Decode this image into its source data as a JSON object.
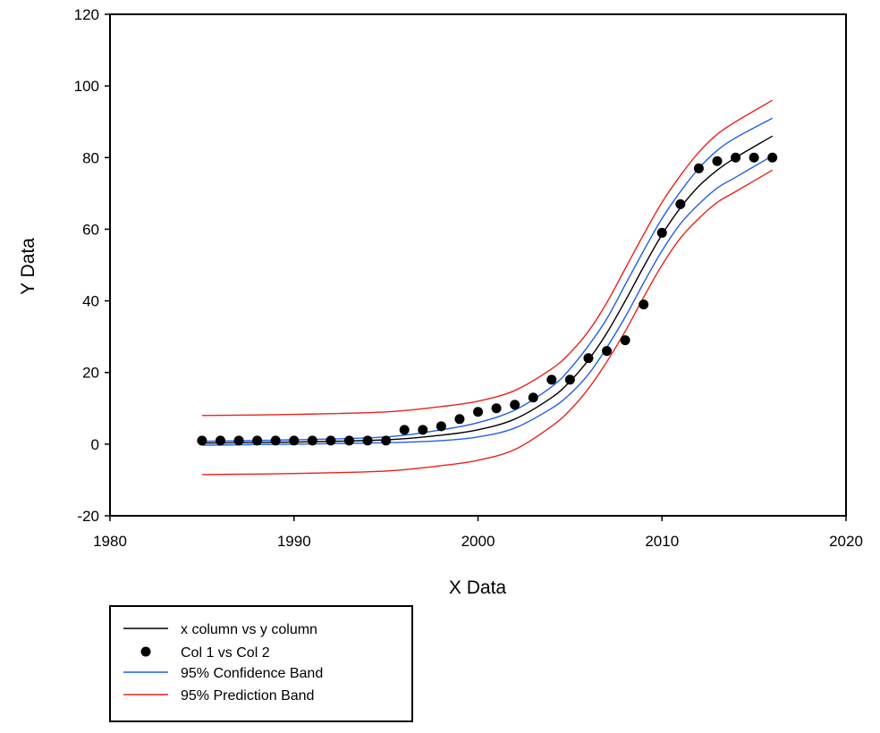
{
  "chart_data": {
    "type": "scatter",
    "xlabel": "X Data",
    "ylabel": "Y Data",
    "xlim": [
      1980,
      2020
    ],
    "ylim": [
      -20,
      120
    ],
    "x_ticks": [
      "1980",
      "1990",
      "2000",
      "2010",
      "2020"
    ],
    "y_ticks": [
      "-20",
      "0",
      "20",
      "40",
      "60",
      "80",
      "100",
      "120"
    ],
    "grid": false,
    "legend_position": "bottom-left, below plot",
    "points": {
      "name": "Col 1 vs Col 2",
      "color": "#000000",
      "x": [
        1985,
        1986,
        1987,
        1988,
        1989,
        1990,
        1991,
        1992,
        1993,
        1994,
        1995,
        1996,
        1997,
        1998,
        1999,
        2000,
        2001,
        2002,
        2003,
        2004,
        2005,
        2006,
        2007,
        2008,
        2009,
        2010,
        2011,
        2012,
        2013,
        2014,
        2015,
        2016
      ],
      "y": [
        1,
        1,
        1,
        1,
        1,
        1,
        1,
        1,
        1,
        1,
        1,
        4,
        4,
        5,
        7,
        9,
        10,
        11,
        13,
        18,
        18,
        24,
        26,
        29,
        39,
        59,
        67,
        77,
        79,
        80,
        80,
        80
      ]
    },
    "curves": [
      {
        "name": "x column vs y column",
        "color": "#000000",
        "x": [
          1985,
          1990,
          1995,
          1998,
          2000,
          2002,
          2004,
          2005,
          2006,
          2007,
          2008,
          2009,
          2010,
          2011,
          2012,
          2013,
          2014,
          2016
        ],
        "y": [
          0.3,
          0.6,
          1.2,
          2.5,
          4,
          7,
          13,
          17.5,
          23.5,
          31,
          40,
          49.5,
          58.5,
          66,
          72,
          76.5,
          80,
          86
        ]
      },
      {
        "name": "95% Confidence Band",
        "color": "#1f5fe8",
        "bands": [
          {
            "x": [
              1985,
              1990,
              1995,
              1998,
              2000,
              2002,
              2004,
              2005,
              2006,
              2007,
              2008,
              2009,
              2010,
              2011,
              2012,
              2013,
              2014,
              2016
            ],
            "y": [
              0.8,
              1.2,
              2,
              4,
              6,
              9.5,
              16,
              21,
              27.5,
              35,
              44.5,
              54,
              63,
              70.5,
              77,
              82,
              85.5,
              91
            ]
          },
          {
            "x": [
              1985,
              1990,
              1995,
              1998,
              2000,
              2002,
              2004,
              2005,
              2006,
              2007,
              2008,
              2009,
              2010,
              2011,
              2012,
              2013,
              2014,
              2016
            ],
            "y": [
              -0.3,
              0,
              0.4,
              1,
              2,
              4.5,
              10,
              14,
              19.5,
              27,
              35.5,
              45,
              54,
              61.5,
              67,
              71.5,
              74.5,
              80.5
            ]
          }
        ]
      },
      {
        "name": "95% Prediction Band",
        "color": "#e8231c",
        "bands": [
          {
            "x": [
              1985,
              1990,
              1995,
              1998,
              2000,
              2002,
              2004,
              2005,
              2006,
              2007,
              2008,
              2009,
              2010,
              2011,
              2012,
              2013,
              2014,
              2016
            ],
            "y": [
              8,
              8.3,
              9,
              10.5,
              12,
              15,
              21,
              25.5,
              31.5,
              39.5,
              49,
              58.5,
              67.5,
              75,
              81.5,
              86.5,
              90,
              96
            ]
          },
          {
            "x": [
              1985,
              1990,
              1995,
              1998,
              2000,
              2002,
              2004,
              2005,
              2006,
              2007,
              2008,
              2009,
              2010,
              2011,
              2012,
              2013,
              2014,
              2016
            ],
            "y": [
              -8.5,
              -8.2,
              -7.5,
              -6,
              -4.5,
              -1.5,
              5,
              9.5,
              15.5,
              23,
              31.5,
              41,
              50,
              57.5,
              63,
              67.5,
              70.5,
              76.5
            ]
          }
        ]
      }
    ],
    "legend": [
      {
        "label": "x column vs y column",
        "kind": "line",
        "color": "#000000"
      },
      {
        "label": "Col 1 vs Col 2",
        "kind": "marker",
        "color": "#000000"
      },
      {
        "label": "95% Confidence Band",
        "kind": "line",
        "color": "#1f5fe8"
      },
      {
        "label": "95% Prediction Band",
        "kind": "line",
        "color": "#e8231c"
      }
    ]
  }
}
